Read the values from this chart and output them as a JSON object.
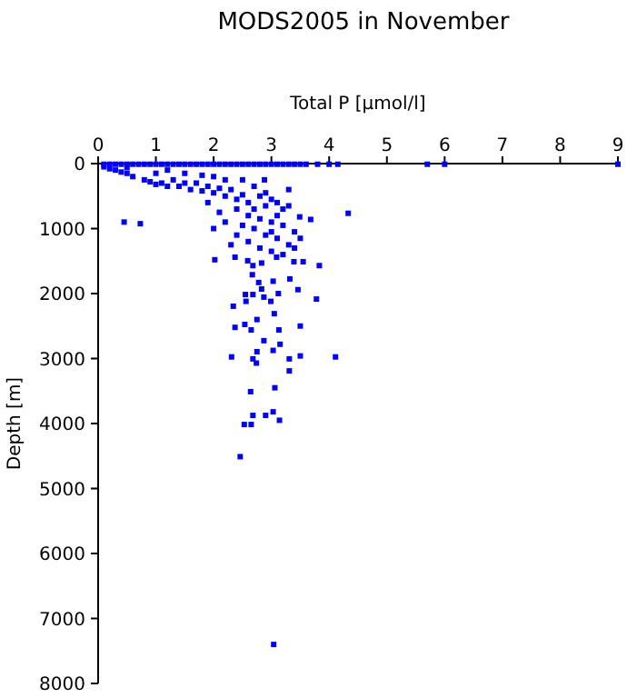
{
  "chart_data": {
    "type": "scatter",
    "title": "MODS2005 in November",
    "xlabel": "Total P [µmol/l]",
    "ylabel": "Depth [m]",
    "marker": "square",
    "grid": false,
    "xlim": [
      0,
      9
    ],
    "xticks": [
      0,
      1,
      2,
      3,
      4,
      5,
      6,
      7,
      8,
      9
    ],
    "ylim": [
      8000,
      0
    ],
    "yticks": [
      0,
      1000,
      2000,
      3000,
      4000,
      5000,
      6000,
      7000,
      8000
    ],
    "series": [
      {
        "color": "#0000ff",
        "x": [
          0.1,
          0.2,
          0.3,
          0.4,
          0.5,
          0.6,
          0.7,
          0.8,
          0.9,
          1.0,
          1.1,
          1.2,
          1.3,
          1.4,
          1.5,
          1.6,
          1.7,
          1.8,
          1.9,
          2.0,
          2.1,
          2.2,
          2.3,
          2.4,
          2.5,
          2.6,
          2.7,
          2.8,
          2.9,
          3.0,
          3.1,
          3.2,
          3.3,
          3.4,
          3.5,
          3.6,
          3.8,
          4.0,
          4.15,
          5.7,
          6.0,
          9.0,
          0.1,
          0.2,
          0.3,
          0.4,
          0.5,
          0.6,
          0.8,
          0.9,
          1.0,
          1.1,
          1.2,
          1.3,
          1.4,
          1.5,
          1.6,
          1.7,
          1.8,
          1.9,
          2.0,
          2.1,
          2.2,
          2.3,
          2.4,
          2.5,
          1.0,
          1.5,
          2.0,
          2.5,
          0.5,
          1.2,
          1.8,
          2.2,
          2.7,
          2.6,
          2.7,
          2.8,
          2.9,
          3.0,
          3.1,
          3.2,
          2.6,
          2.8,
          3.0,
          3.2,
          3.4,
          2.5,
          2.7,
          2.9,
          3.1,
          3.3,
          2.4,
          2.6,
          2.8,
          3.0,
          3.2,
          2.3,
          3.4,
          3.0,
          3.1,
          2.9,
          3.3,
          2.2,
          2.1,
          1.9,
          2.4,
          3.5,
          2.0,
          0.45,
          0.73,
          4.33,
          3.68,
          3.49,
          3.3,
          2.88,
          2.02,
          2.37,
          2.59,
          2.68,
          2.83,
          3.09,
          3.39,
          3.55,
          3.83,
          2.67,
          3.03,
          3.32,
          2.78,
          2.83,
          3.46,
          2.55,
          2.68,
          3.12,
          2.87,
          3.78,
          2.99,
          2.56,
          2.34,
          3.05,
          2.75,
          2.54,
          2.37,
          2.65,
          3.13,
          3.5,
          2.87,
          3.15,
          2.75,
          3.03,
          2.31,
          2.68,
          3.31,
          3.5,
          4.11,
          2.74,
          3.31,
          3.06,
          2.64,
          3.03,
          2.68,
          2.9,
          3.14,
          2.53,
          2.65,
          2.46,
          3.04
        ],
        "values": [
          10,
          10,
          10,
          10,
          10,
          10,
          10,
          10,
          10,
          10,
          10,
          10,
          10,
          10,
          10,
          10,
          10,
          10,
          10,
          10,
          10,
          10,
          10,
          10,
          10,
          10,
          10,
          10,
          10,
          10,
          10,
          10,
          10,
          10,
          10,
          10,
          10,
          10,
          10,
          10,
          10,
          10,
          50,
          80,
          100,
          130,
          150,
          200,
          250,
          280,
          320,
          300,
          350,
          250,
          350,
          300,
          400,
          300,
          420,
          350,
          450,
          380,
          500,
          400,
          550,
          480,
          150,
          150,
          200,
          250,
          60,
          100,
          180,
          250,
          350,
          600,
          700,
          500,
          650,
          550,
          600,
          700,
          800,
          850,
          900,
          950,
          1050,
          950,
          1000,
          1100,
          1150,
          1250,
          1100,
          1200,
          1300,
          1350,
          1400,
          1250,
          1300,
          1050,
          800,
          450,
          650,
          900,
          750,
          600,
          700,
          1150,
          1000,
          900,
          925,
          765,
          860,
          820,
          400,
          250,
          1480,
          1440,
          1495,
          1570,
          1530,
          1440,
          1510,
          1510,
          1570,
          1710,
          1810,
          1775,
          1830,
          1930,
          1940,
          2015,
          2015,
          2000,
          2055,
          2085,
          2120,
          2120,
          2195,
          2310,
          2400,
          2475,
          2520,
          2560,
          2560,
          2500,
          2725,
          2780,
          2895,
          2875,
          2975,
          3005,
          3005,
          2960,
          2975,
          3070,
          3190,
          3450,
          3510,
          3820,
          3875,
          3875,
          3950,
          4015,
          4015,
          4510,
          7400
        ]
      }
    ]
  }
}
